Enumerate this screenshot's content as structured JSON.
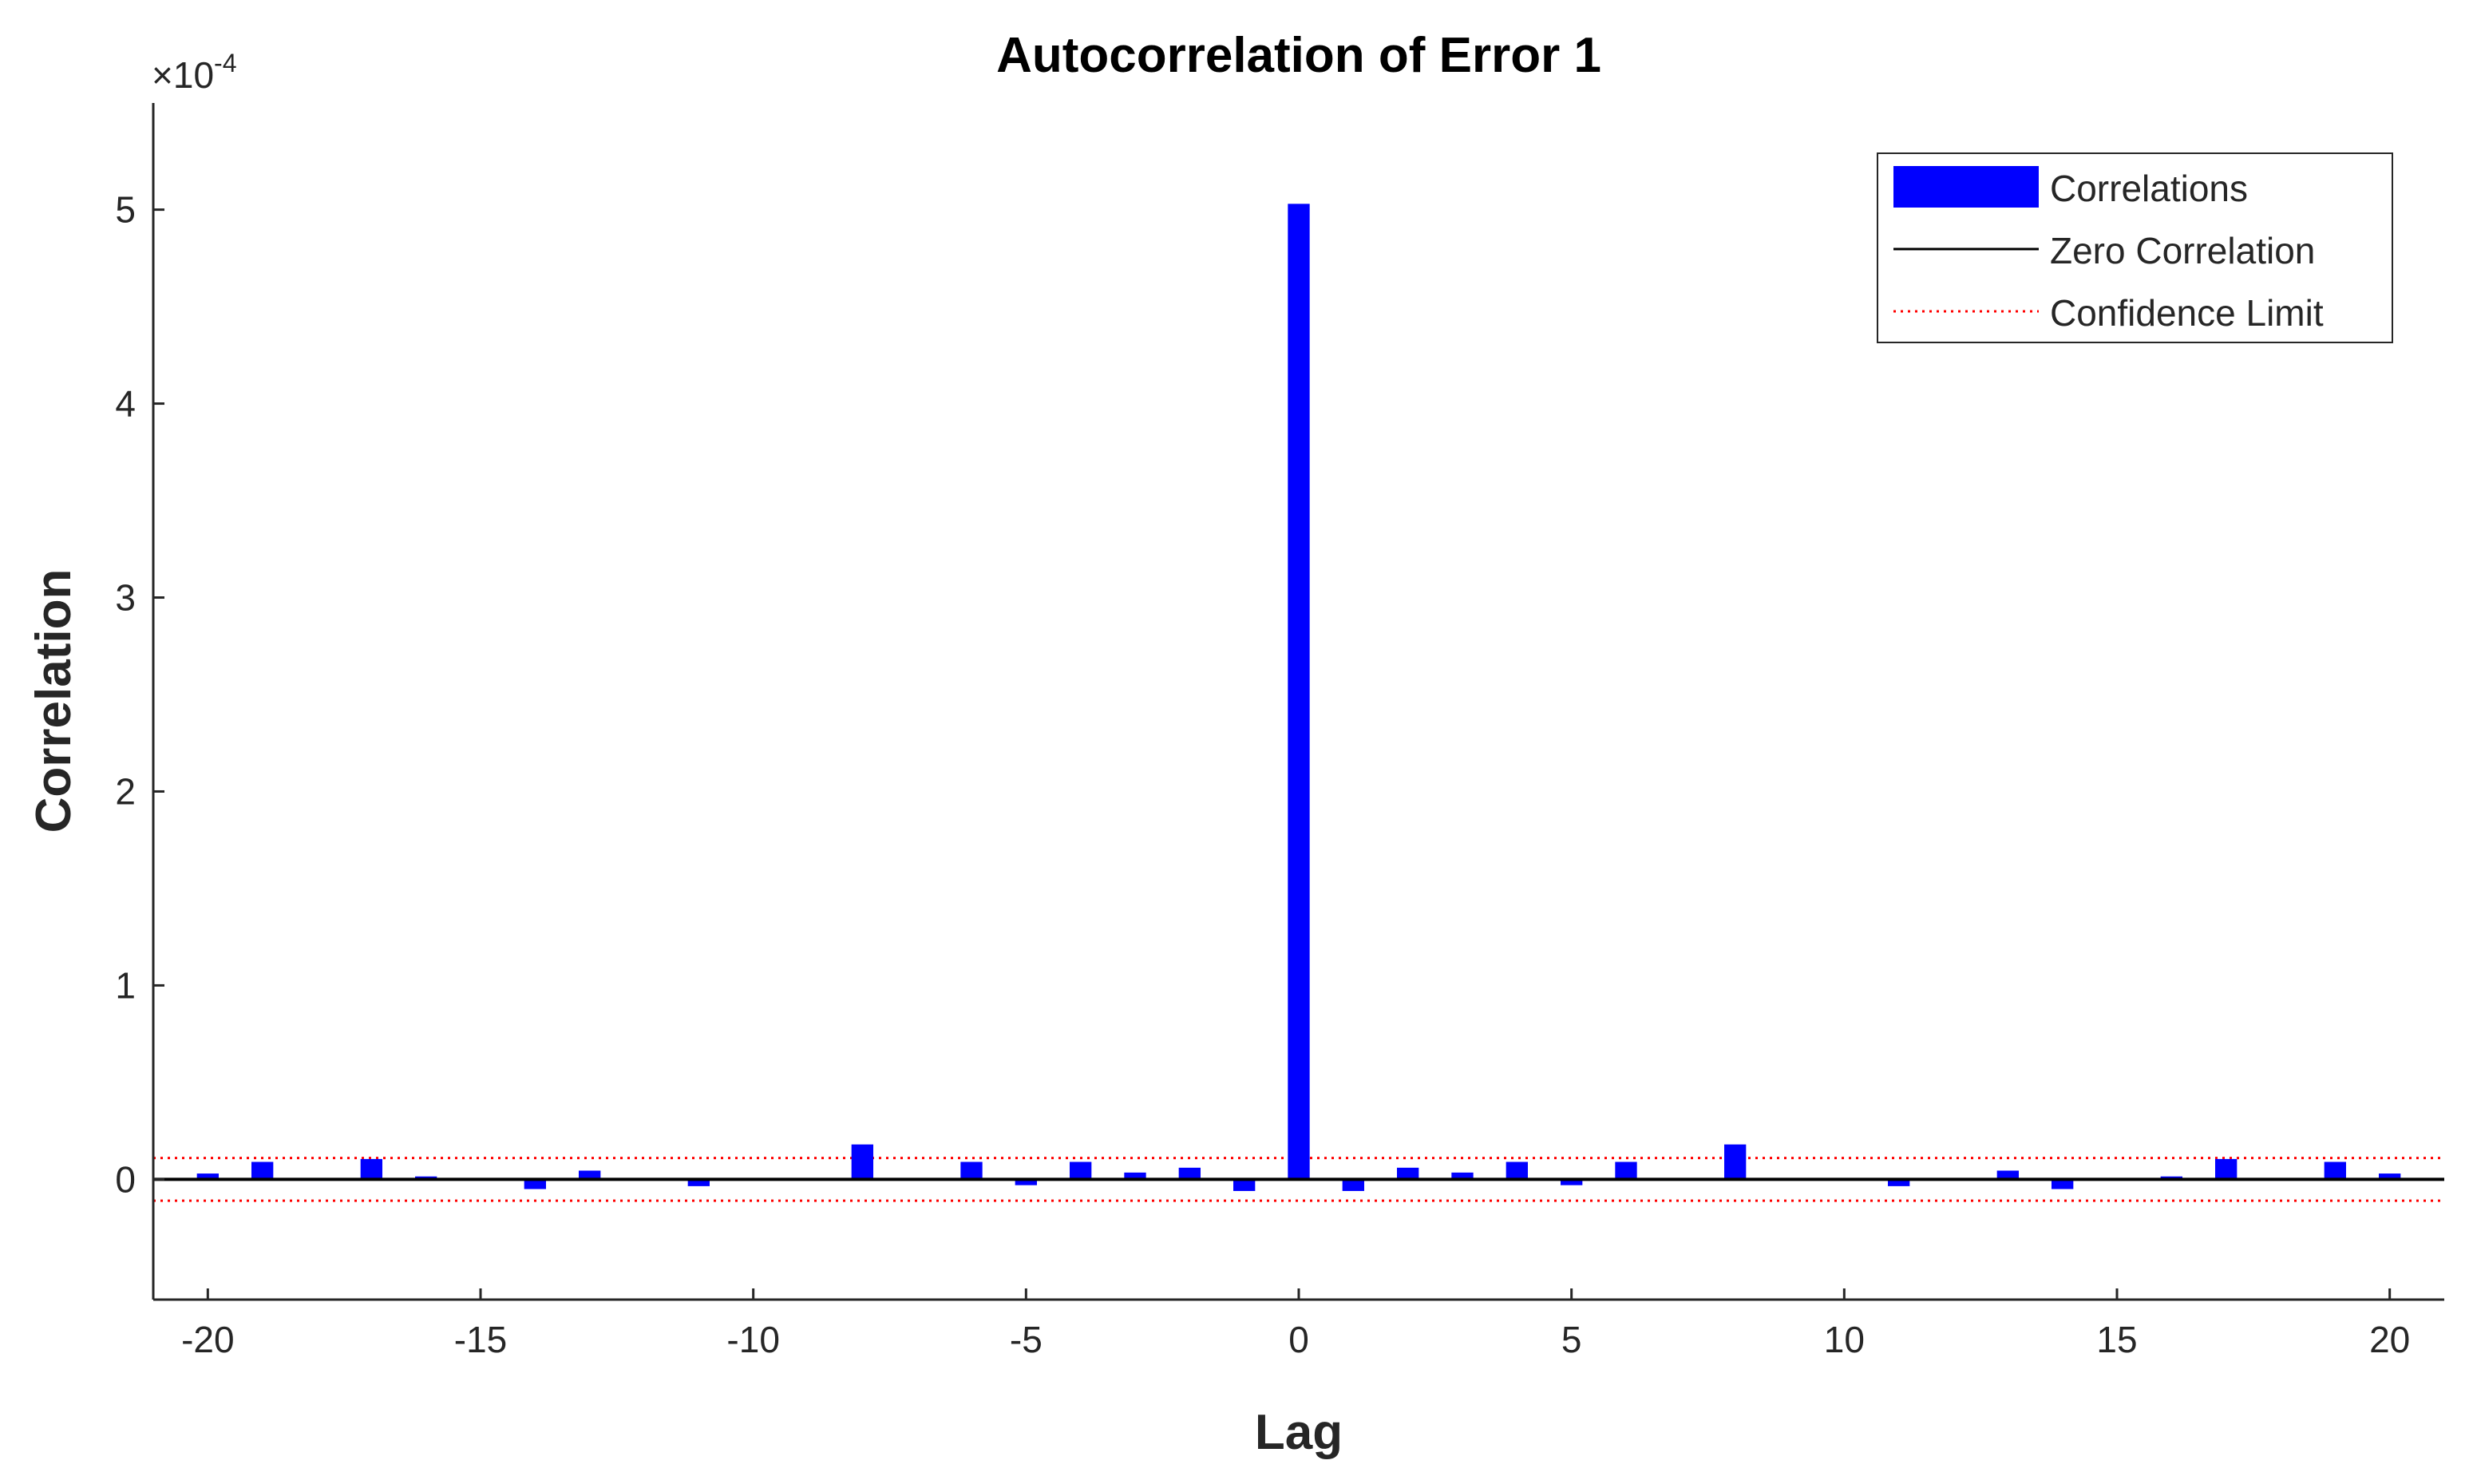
{
  "chart_data": {
    "type": "bar",
    "title": "Autocorrelation of Error 1",
    "xlabel": "Lag",
    "ylabel": "Correlation",
    "y_exponent_label": "×10",
    "y_exponent": "-4",
    "xlim": [
      -21,
      21
    ],
    "ylim": [
      -0.62,
      5.55
    ],
    "y_scale_factor": 0.0001,
    "xticks": [
      -20,
      -15,
      -10,
      -5,
      0,
      5,
      10,
      15,
      20
    ],
    "yticks": [
      0,
      1,
      2,
      3,
      4,
      5
    ],
    "x": [
      -20,
      -19,
      -18,
      -17,
      -16,
      -15,
      -14,
      -13,
      -12,
      -11,
      -10,
      -9,
      -8,
      -7,
      -6,
      -5,
      -4,
      -3,
      -2,
      -1,
      0,
      1,
      2,
      3,
      4,
      5,
      6,
      7,
      8,
      9,
      10,
      11,
      12,
      13,
      14,
      15,
      16,
      17,
      18,
      19,
      20
    ],
    "series": [
      {
        "name": "Correlations",
        "color": "#0000ff",
        "values": [
          0.03,
          0.09,
          0,
          0.105,
          0.015,
          0,
          -0.05,
          0.045,
          0,
          -0.035,
          0,
          0.005,
          0.18,
          0,
          0.09,
          -0.03,
          0.09,
          0.035,
          0.06,
          -0.06,
          5.03,
          -0.06,
          0.06,
          0.035,
          0.09,
          -0.03,
          0.09,
          0,
          0.18,
          0.005,
          0,
          -0.035,
          0,
          0.045,
          -0.05,
          0,
          0.015,
          0.105,
          0,
          0.09,
          0.03
        ]
      }
    ],
    "zero_line": {
      "name": "Zero Correlation",
      "value": 0,
      "color": "#000000"
    },
    "confidence_limit": {
      "name": "Confidence Limit",
      "value": 0.11,
      "color": "#ff0000"
    },
    "legend": {
      "placement": "top-right",
      "entries": [
        "Correlations",
        "Zero Correlation",
        "Confidence Limit"
      ]
    },
    "grid": false
  }
}
